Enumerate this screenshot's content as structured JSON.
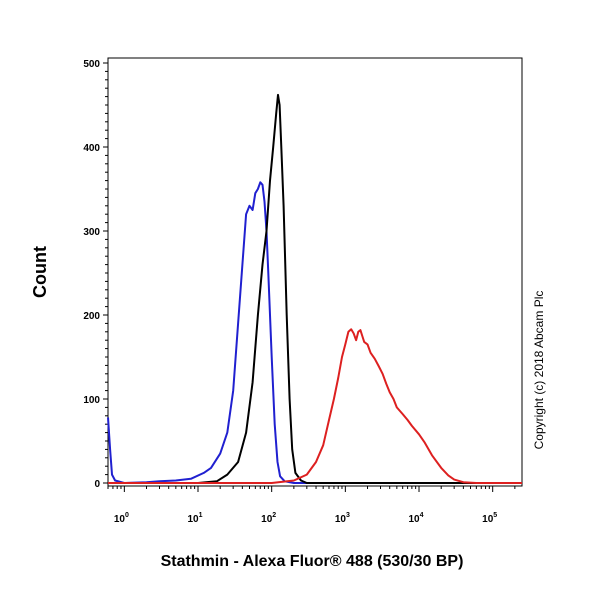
{
  "chart_data": {
    "type": "line",
    "xlabel": "Stathmin - Alexa Fluor® 488 (530/30 BP)",
    "ylabel": "Count",
    "x_scale": "log",
    "xlim": [
      0.6,
      250000
    ],
    "ylim": [
      0,
      500
    ],
    "y_ticks": [
      0,
      100,
      200,
      300,
      400,
      500
    ],
    "x_ticks": [
      {
        "value": 1,
        "base": "10",
        "exp": "0"
      },
      {
        "value": 10,
        "base": "10",
        "exp": "1"
      },
      {
        "value": 100,
        "base": "10",
        "exp": "2"
      },
      {
        "value": 1000,
        "base": "10",
        "exp": "3"
      },
      {
        "value": 10000,
        "base": "10",
        "exp": "4"
      },
      {
        "value": 100000,
        "base": "10",
        "exp": "5"
      }
    ],
    "copyright": "Copyright (c) 2018 Abcam Plc",
    "grid": false,
    "series": [
      {
        "color": "#2020d0",
        "points": [
          [
            0.6,
            78
          ],
          [
            0.64,
            40
          ],
          [
            0.68,
            10
          ],
          [
            0.75,
            3
          ],
          [
            1,
            0
          ],
          [
            2,
            1
          ],
          [
            3,
            2
          ],
          [
            5,
            3
          ],
          [
            8,
            5
          ],
          [
            12,
            12
          ],
          [
            15,
            18
          ],
          [
            20,
            35
          ],
          [
            25,
            60
          ],
          [
            30,
            110
          ],
          [
            35,
            190
          ],
          [
            40,
            260
          ],
          [
            45,
            320
          ],
          [
            50,
            330
          ],
          [
            55,
            325
          ],
          [
            60,
            345
          ],
          [
            65,
            350
          ],
          [
            70,
            358
          ],
          [
            75,
            355
          ],
          [
            80,
            335
          ],
          [
            85,
            300
          ],
          [
            90,
            250
          ],
          [
            100,
            150
          ],
          [
            110,
            70
          ],
          [
            120,
            25
          ],
          [
            130,
            8
          ],
          [
            150,
            2
          ],
          [
            200,
            0
          ],
          [
            250000,
            0
          ]
        ]
      },
      {
        "color": "#000000",
        "points": [
          [
            0.6,
            0
          ],
          [
            10,
            0
          ],
          [
            18,
            2
          ],
          [
            25,
            10
          ],
          [
            35,
            25
          ],
          [
            45,
            60
          ],
          [
            55,
            120
          ],
          [
            65,
            200
          ],
          [
            75,
            260
          ],
          [
            85,
            300
          ],
          [
            95,
            360
          ],
          [
            105,
            400
          ],
          [
            115,
            440
          ],
          [
            122,
            462
          ],
          [
            128,
            450
          ],
          [
            135,
            400
          ],
          [
            145,
            330
          ],
          [
            160,
            200
          ],
          [
            175,
            100
          ],
          [
            190,
            40
          ],
          [
            210,
            12
          ],
          [
            250,
            3
          ],
          [
            300,
            0
          ],
          [
            250000,
            0
          ]
        ]
      },
      {
        "color": "#dd2020",
        "points": [
          [
            0.6,
            0
          ],
          [
            100,
            0
          ],
          [
            200,
            3
          ],
          [
            300,
            10
          ],
          [
            400,
            25
          ],
          [
            500,
            45
          ],
          [
            600,
            75
          ],
          [
            700,
            100
          ],
          [
            800,
            125
          ],
          [
            900,
            150
          ],
          [
            1000,
            165
          ],
          [
            1100,
            180
          ],
          [
            1200,
            183
          ],
          [
            1300,
            178
          ],
          [
            1400,
            170
          ],
          [
            1500,
            180
          ],
          [
            1600,
            182
          ],
          [
            1700,
            175
          ],
          [
            1800,
            168
          ],
          [
            2000,
            165
          ],
          [
            2200,
            155
          ],
          [
            2500,
            148
          ],
          [
            2800,
            140
          ],
          [
            3200,
            130
          ],
          [
            3600,
            118
          ],
          [
            4000,
            108
          ],
          [
            4500,
            100
          ],
          [
            5000,
            90
          ],
          [
            6000,
            82
          ],
          [
            7000,
            75
          ],
          [
            8000,
            68
          ],
          [
            10000,
            58
          ],
          [
            12000,
            48
          ],
          [
            15000,
            33
          ],
          [
            20000,
            18
          ],
          [
            25000,
            9
          ],
          [
            30000,
            4
          ],
          [
            40000,
            1
          ],
          [
            60000,
            0
          ],
          [
            250000,
            0
          ]
        ]
      }
    ]
  }
}
